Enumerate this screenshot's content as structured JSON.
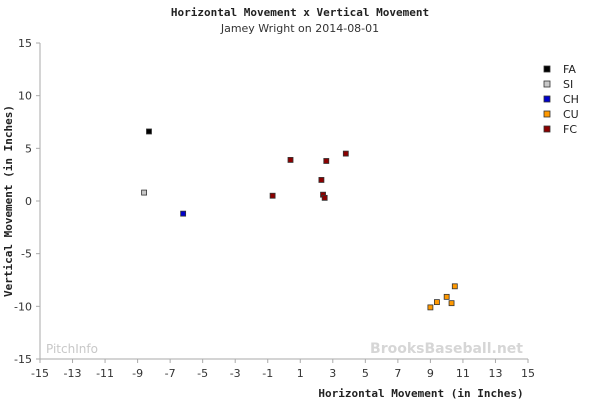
{
  "chart_data": {
    "type": "scatter",
    "title": "Horizontal Movement x Vertical Movement",
    "subtitle": "Jamey Wright on 2014-08-01",
    "xlabel": "Horizontal Movement (in Inches)",
    "ylabel": "Vertical Movement (in Inches)",
    "xlim": [
      -15,
      15
    ],
    "ylim": [
      -15,
      15
    ],
    "xticks": [
      -15,
      -13,
      -11,
      -9,
      -7,
      -5,
      -3,
      -1,
      1,
      3,
      5,
      7,
      9,
      11,
      13,
      15
    ],
    "yticks": [
      15,
      10,
      5,
      0,
      -5,
      -10,
      -15
    ],
    "grid": false,
    "legend_position": "right",
    "series": [
      {
        "name": "FA",
        "color": "#000000",
        "points": [
          [
            -8.3,
            6.6
          ]
        ]
      },
      {
        "name": "SI",
        "color": "#c8c8c8",
        "points": [
          [
            -8.6,
            0.8
          ]
        ]
      },
      {
        "name": "CH",
        "color": "#0000cc",
        "points": [
          [
            -6.2,
            -1.2
          ]
        ]
      },
      {
        "name": "CU",
        "color": "#ff9900",
        "points": [
          [
            9.0,
            -10.1
          ],
          [
            9.4,
            -9.6
          ],
          [
            10.0,
            -9.1
          ],
          [
            10.3,
            -9.7
          ],
          [
            10.5,
            -8.1
          ]
        ]
      },
      {
        "name": "FC",
        "color": "#8b0000",
        "points": [
          [
            -0.7,
            0.5
          ],
          [
            0.4,
            3.9
          ],
          [
            2.3,
            2.0
          ],
          [
            2.4,
            0.6
          ],
          [
            2.5,
            0.3
          ],
          [
            2.6,
            3.8
          ],
          [
            3.8,
            4.5
          ]
        ]
      }
    ]
  },
  "watermarks": {
    "left": "PitchInfo",
    "right": "BrooksBaseball.net"
  }
}
